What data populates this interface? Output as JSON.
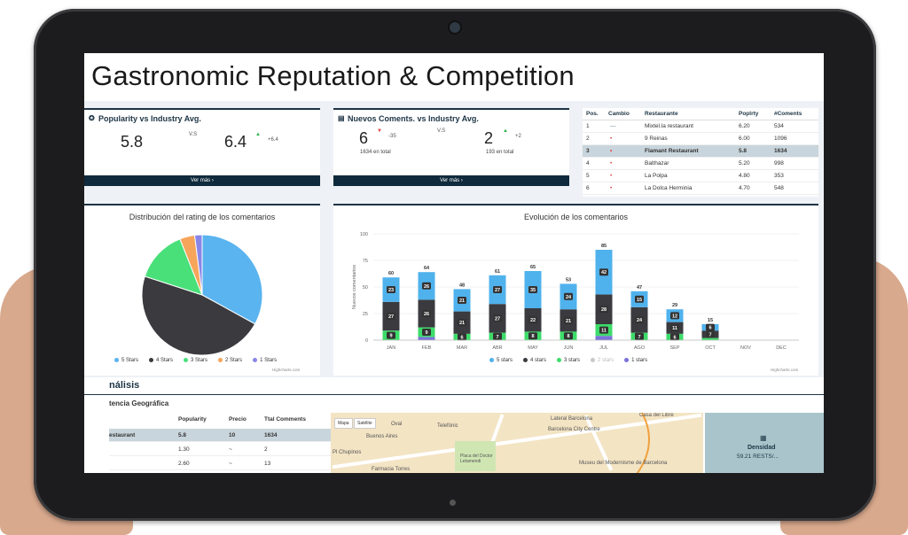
{
  "page_title": "Gastronomic Reputation & Competition",
  "popularity_card": {
    "title": "Popularity vs Industry Avg.",
    "value": "5.8",
    "vs": "V.S",
    "industry_value": "6.4",
    "delta": "+6.4",
    "link": "Ver más"
  },
  "comments_card": {
    "title": "Nuevos Coments. vs Industry Avg.",
    "value": "6",
    "delta": "-35",
    "total": "1634 en total",
    "vs": "V.S",
    "industry_value": "2",
    "industry_delta": "+2",
    "industry_total": "193 en total",
    "link": "Ver más"
  },
  "ranking": {
    "headers": [
      "Pos.",
      "Cambio",
      "Restaurante",
      "Poplrty",
      "#Coments"
    ],
    "rows": [
      {
        "pos": "1",
        "change": "—",
        "name": "Mixtel.la restaurant",
        "pop": "6.20",
        "comments": "534"
      },
      {
        "pos": "2",
        "change": "•",
        "name": "9 Reinas",
        "pop": "6.00",
        "comments": "1096"
      },
      {
        "pos": "3",
        "change": "•",
        "name": "Flamant Restaurant",
        "pop": "5.8",
        "comments": "1634"
      },
      {
        "pos": "4",
        "change": "•",
        "name": "Balthazar",
        "pop": "5.20",
        "comments": "998"
      },
      {
        "pos": "5",
        "change": "•",
        "name": "La Polpa",
        "pop": "4.80",
        "comments": "353"
      },
      {
        "pos": "6",
        "change": "•",
        "name": "La Dolca Herminia",
        "pop": "4.70",
        "comments": "548"
      }
    ]
  },
  "credit": "Highcharts.com",
  "chart_data": [
    {
      "type": "pie",
      "title": "Distribución del rating de los comentarios",
      "labels": [
        "5 Stars",
        "4 Stars",
        "3 Stars",
        "2 Stars",
        "1 Stars"
      ],
      "values": [
        33,
        47,
        14,
        4,
        2
      ],
      "colors": [
        "#5ab4ef",
        "#3a3a3f",
        "#49e07a",
        "#f6a55b",
        "#8a86e8"
      ]
    },
    {
      "type": "bar",
      "title": "Evolución de los comentarios",
      "ylabel": "Nuevos comentarios",
      "ylim": [
        0,
        100
      ],
      "yticks": [
        0,
        25,
        50,
        75,
        100
      ],
      "categories": [
        "JAN",
        "FEB",
        "MAR",
        "ABR",
        "MAY",
        "JUN",
        "JUL",
        "AGO",
        "SEP",
        "OCT",
        "NOV",
        "DEC"
      ],
      "totals": [
        "60",
        "64",
        "48",
        "61",
        "65",
        "53",
        "85",
        "47",
        "29",
        "15",
        "",
        ""
      ],
      "series": [
        {
          "name": "1 stars",
          "color": "#7b72d8",
          "values": [
            0,
            3,
            0,
            0,
            0,
            0,
            4,
            0,
            0,
            0,
            0,
            0
          ]
        },
        {
          "name": "2 stars",
          "color": "#c9c9c9",
          "values": [
            0,
            0,
            0,
            0,
            0,
            0,
            0,
            0,
            0,
            0,
            0,
            0
          ]
        },
        {
          "name": "3 stars",
          "color": "#3ddc6a",
          "values": [
            9,
            9,
            6,
            7,
            8,
            8,
            11,
            7,
            6,
            2,
            0,
            0
          ]
        },
        {
          "name": "4 stars",
          "color": "#3a3a3f",
          "values": [
            27,
            26,
            21,
            27,
            22,
            21,
            28,
            24,
            11,
            7,
            0,
            0
          ]
        },
        {
          "name": "5 stars",
          "color": "#4fb2ec",
          "values": [
            23,
            26,
            21,
            27,
            35,
            24,
            42,
            15,
            12,
            6,
            0,
            0
          ]
        }
      ],
      "labels_shown": [
        [
          "",
          "",
          "",
          "",
          "",
          "",
          "",
          "",
          "",
          "",
          "",
          ""
        ],
        [
          "",
          "",
          "",
          "",
          "",
          "",
          "",
          "",
          "",
          "",
          "",
          ""
        ],
        [
          "9",
          "9",
          "6",
          "7",
          "8",
          "8",
          "11",
          "7",
          "6",
          "",
          "",
          ""
        ],
        [
          "27",
          "26",
          "21",
          "27",
          "22",
          "21",
          "28",
          "24",
          "11",
          "7",
          "",
          ""
        ],
        [
          "23",
          "26",
          "21",
          "27",
          "35",
          "24",
          "42",
          "15",
          "12",
          "6",
          "",
          ""
        ]
      ],
      "legend": [
        "5 stars",
        "4 stars",
        "3 stars",
        "2 stars",
        "1 stars"
      ],
      "legend_colors": [
        "#4fb2ec",
        "#3a3a3f",
        "#3ddc6a",
        "#c9c9c9",
        "#7b72d8"
      ]
    }
  ],
  "analysis": {
    "title": "nálisis",
    "subtitle": "tencia Geográfica",
    "headers": [
      "Popularity",
      "Precio",
      "Ttal Comments"
    ],
    "rows": [
      {
        "name": "estaurant",
        "pop": "5.8",
        "price": "10",
        "comments": "1634"
      },
      {
        "name": "",
        "pop": "1.30",
        "price": "~",
        "comments": "2"
      },
      {
        "name": "",
        "pop": "2.60",
        "price": "~",
        "comments": "13"
      }
    ]
  },
  "map": {
    "tabs": [
      "Mapa",
      "Satélite"
    ],
    "labels": [
      "Oval",
      "Telefónic",
      "Buenos Aires",
      "Lateral Barcelona",
      "Barcelona City Centre",
      "Casa del Libre",
      "Placa del Doctor Letamendi",
      "Museu del Modernisme de Barcelona",
      "Pl Chupinos",
      "Farmacia Torres"
    ]
  },
  "density": {
    "label": "Densidad",
    "value": "59.21 RESTS/..."
  }
}
